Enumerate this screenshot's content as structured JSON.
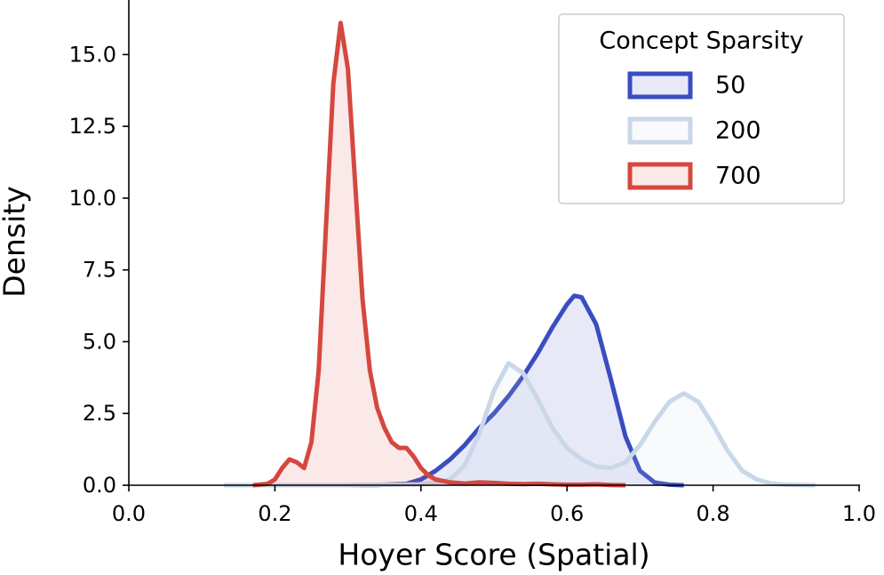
{
  "chart_data": {
    "type": "kde",
    "xlabel": "Hoyer Score (Spatial)",
    "ylabel": "Density",
    "legend_title": "Concept Sparsity",
    "legend": "upper right",
    "xlim": [
      0,
      1
    ],
    "ylim": [
      0,
      16.9
    ],
    "xticks": [
      {
        "value": 0,
        "label": "0.0"
      },
      {
        "value": 0.2,
        "label": "0.2"
      },
      {
        "value": 0.4,
        "label": "0.4"
      },
      {
        "value": 0.6,
        "label": "0.6"
      },
      {
        "value": 0.8,
        "label": "0.8"
      },
      {
        "value": 1,
        "label": "1.0"
      }
    ],
    "yticks": [
      {
        "value": 0,
        "label": "0.0"
      },
      {
        "value": 2.5,
        "label": "2.5"
      },
      {
        "value": 5,
        "label": "5.0"
      },
      {
        "value": 7.5,
        "label": "7.5"
      },
      {
        "value": 10,
        "label": "10.0"
      },
      {
        "value": 12.5,
        "label": "12.5"
      },
      {
        "value": 15,
        "label": "15.0"
      }
    ],
    "series": [
      {
        "name": "50",
        "color": "#3a4cc0",
        "x": [
          0.3,
          0.34,
          0.38,
          0.4,
          0.42,
          0.44,
          0.46,
          0.48,
          0.5,
          0.52,
          0.54,
          0.56,
          0.58,
          0.6,
          0.61,
          0.62,
          0.64,
          0.66,
          0.68,
          0.7,
          0.72,
          0.74,
          0.76
        ],
        "values": [
          0,
          0.01,
          0.05,
          0.2,
          0.5,
          0.9,
          1.4,
          2.0,
          2.5,
          3.1,
          3.8,
          4.6,
          5.5,
          6.3,
          6.6,
          6.55,
          5.6,
          3.7,
          1.7,
          0.5,
          0.1,
          0.02,
          0
        ]
      },
      {
        "name": "200",
        "color": "#c9d7e9",
        "x": [
          0.13,
          0.3,
          0.4,
          0.42,
          0.44,
          0.46,
          0.48,
          0.5,
          0.52,
          0.54,
          0.56,
          0.58,
          0.6,
          0.62,
          0.64,
          0.66,
          0.68,
          0.7,
          0.72,
          0.74,
          0.76,
          0.78,
          0.8,
          0.82,
          0.84,
          0.86,
          0.88,
          0.9,
          0.94
        ],
        "values": [
          0,
          0,
          0.03,
          0.08,
          0.2,
          0.7,
          1.8,
          3.3,
          4.25,
          3.9,
          3.0,
          2.0,
          1.3,
          0.9,
          0.65,
          0.6,
          0.8,
          1.4,
          2.2,
          2.9,
          3.2,
          2.9,
          2.1,
          1.2,
          0.5,
          0.2,
          0.06,
          0.02,
          0
        ]
      },
      {
        "name": "700",
        "color": "#d5483f",
        "x": [
          0.17,
          0.19,
          0.2,
          0.21,
          0.22,
          0.23,
          0.24,
          0.25,
          0.26,
          0.27,
          0.28,
          0.29,
          0.3,
          0.31,
          0.32,
          0.33,
          0.34,
          0.35,
          0.36,
          0.37,
          0.38,
          0.39,
          0.4,
          0.41,
          0.42,
          0.44,
          0.46,
          0.48,
          0.5,
          0.52,
          0.54,
          0.56,
          0.58,
          0.6,
          0.62,
          0.64,
          0.66,
          0.68
        ],
        "values": [
          0,
          0.05,
          0.2,
          0.6,
          0.9,
          0.8,
          0.6,
          1.5,
          4.0,
          9.0,
          14.0,
          16.1,
          14.5,
          10.5,
          6.5,
          4.0,
          2.7,
          2.0,
          1.5,
          1.3,
          1.3,
          1.0,
          0.6,
          0.35,
          0.2,
          0.1,
          0.06,
          0.1,
          0.08,
          0.05,
          0.04,
          0.05,
          0.03,
          0.02,
          0.02,
          0.03,
          0.01,
          0
        ]
      }
    ]
  }
}
